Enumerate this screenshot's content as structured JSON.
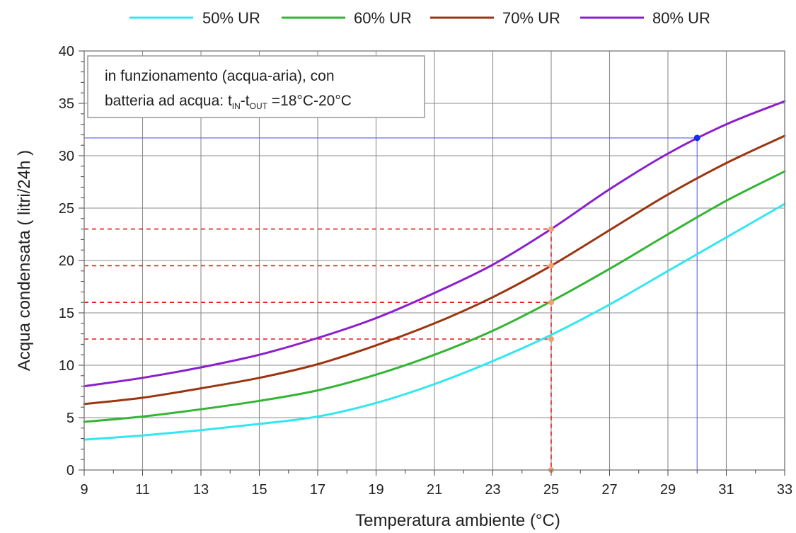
{
  "chart_data": {
    "type": "line",
    "xlabel": "Temperatura ambiente (°C)",
    "ylabel": "Acqua condensata ( litri/24h )",
    "xlim": [
      9,
      33
    ],
    "ylim": [
      0,
      40
    ],
    "x_ticks": [
      9,
      11,
      13,
      15,
      17,
      19,
      21,
      23,
      25,
      27,
      29,
      31,
      33
    ],
    "y_ticks": [
      0,
      5,
      10,
      15,
      20,
      25,
      30,
      35,
      40
    ],
    "grid": true,
    "legend_position": "top",
    "annotation": {
      "line1": "in funzionamento (acqua-aria), con",
      "line2_prefix": "batteria ad acqua: t",
      "sub_in": "IN",
      "dash": "-t",
      "sub_out": "OUT",
      "line2_suffix": " =18°C-20°C"
    },
    "x": [
      9,
      11,
      13,
      15,
      17,
      19,
      21,
      23,
      25,
      27,
      29,
      31,
      33
    ],
    "series": [
      {
        "name": "50% UR",
        "color": "#33E6F0",
        "values": [
          2.9,
          3.3,
          3.8,
          4.4,
          5.1,
          6.4,
          8.2,
          10.4,
          12.9,
          15.8,
          19.0,
          22.2,
          25.4
        ]
      },
      {
        "name": "60% UR",
        "color": "#33B533",
        "values": [
          4.6,
          5.1,
          5.8,
          6.6,
          7.6,
          9.1,
          11.0,
          13.3,
          16.1,
          19.2,
          22.5,
          25.7,
          28.5
        ]
      },
      {
        "name": "70% UR",
        "color": "#9B3510",
        "values": [
          6.3,
          6.9,
          7.8,
          8.8,
          10.1,
          11.9,
          14.0,
          16.5,
          19.5,
          22.9,
          26.3,
          29.3,
          31.9
        ]
      },
      {
        "name": "80% UR",
        "color": "#8A1FCC",
        "values": [
          8.0,
          8.8,
          9.8,
          11.0,
          12.6,
          14.5,
          16.9,
          19.6,
          23.0,
          26.8,
          30.2,
          33.0,
          35.2
        ]
      }
    ],
    "reference_lines": {
      "red_vertical_x": 25,
      "red_horizontal_y": [
        12.5,
        16.0,
        19.5,
        23.0
      ],
      "blue_vertical_x": 30,
      "blue_horizontal_y": 31.7
    },
    "colors": {
      "red_reference": "#E81818",
      "blue_reference": "#6A6AF0",
      "blue_point": "#1530E0",
      "marker": "#F0A070",
      "grid": "#8C8C8C",
      "frame": "#888888"
    }
  }
}
